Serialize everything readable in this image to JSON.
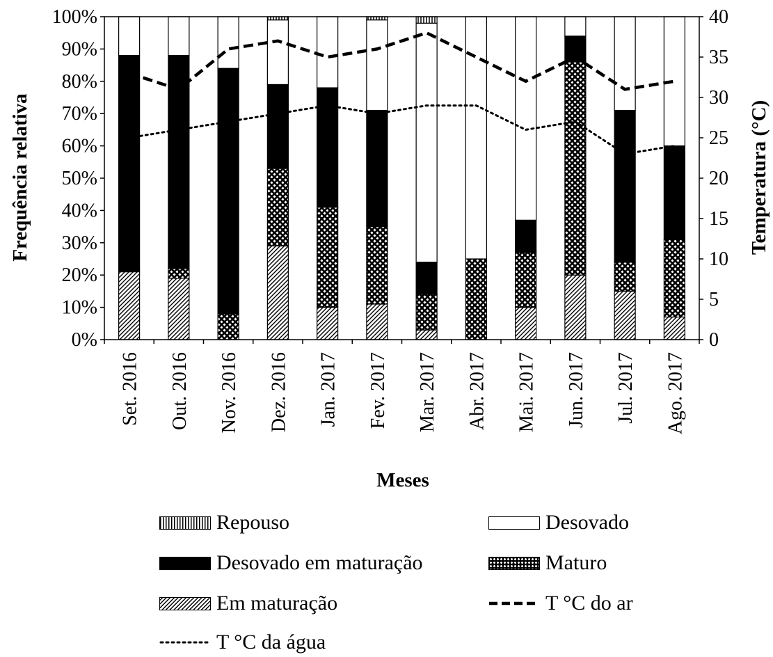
{
  "chart_data": {
    "type": "bar",
    "stacked": true,
    "xlabel": "Meses",
    "ylabel": "Frequência relativa",
    "y2label": "Temperatura (°C)",
    "ylim": [
      0,
      100
    ],
    "y2lim": [
      0,
      40
    ],
    "yticks": [
      "0%",
      "10%",
      "20%",
      "30%",
      "40%",
      "50%",
      "60%",
      "70%",
      "80%",
      "90%",
      "100%"
    ],
    "y2ticks": [
      "0",
      "5",
      "10",
      "15",
      "20",
      "25",
      "30",
      "35",
      "40"
    ],
    "categories": [
      "Set. 2016",
      "Out. 2016",
      "Nov. 2016",
      "Dez. 2016",
      "Jan. 2017",
      "Fev. 2017",
      "Mar. 2017",
      "Abr. 2017",
      "Mai. 2017",
      "Jun. 2017",
      "Jul. 2017",
      "Ago. 2017"
    ],
    "series": [
      {
        "name": "Em maturação",
        "pattern": "hatch",
        "values": [
          21,
          19,
          0,
          29,
          10,
          11,
          3,
          0,
          10,
          20,
          15,
          7
        ]
      },
      {
        "name": "Maturo",
        "pattern": "checker",
        "values": [
          0,
          3,
          8,
          24,
          31,
          24,
          11,
          25,
          17,
          66,
          9,
          24
        ]
      },
      {
        "name": "Desovado em maturação",
        "pattern": "solid",
        "values": [
          67,
          66,
          76,
          26,
          37,
          36,
          10,
          0,
          10,
          8,
          47,
          29
        ]
      },
      {
        "name": "Desovado",
        "pattern": "empty",
        "values": [
          12,
          12,
          16,
          20,
          22,
          28,
          74,
          75,
          63,
          6,
          29,
          40
        ]
      },
      {
        "name": "Repouso",
        "pattern": "vlines",
        "values": [
          0,
          0,
          0,
          1,
          0,
          1,
          2,
          0,
          0,
          0,
          0,
          0
        ]
      }
    ],
    "lines": [
      {
        "name": "T °C do ar",
        "axis": "right",
        "style": "dashed",
        "values": [
          33,
          31,
          36,
          37,
          35,
          36,
          38,
          35,
          32,
          35,
          31,
          32
        ]
      },
      {
        "name": "T °C da água",
        "axis": "right",
        "style": "dotted",
        "values": [
          25,
          26,
          27,
          28,
          29,
          28,
          29,
          29,
          26,
          27,
          23,
          24
        ]
      }
    ],
    "legend": {
      "placement": "bottom",
      "order": [
        "Repouso",
        "Desovado",
        "Desovado em maturação",
        "Maturo",
        "Em maturação",
        "T °C do ar",
        "T °C da água"
      ]
    }
  }
}
